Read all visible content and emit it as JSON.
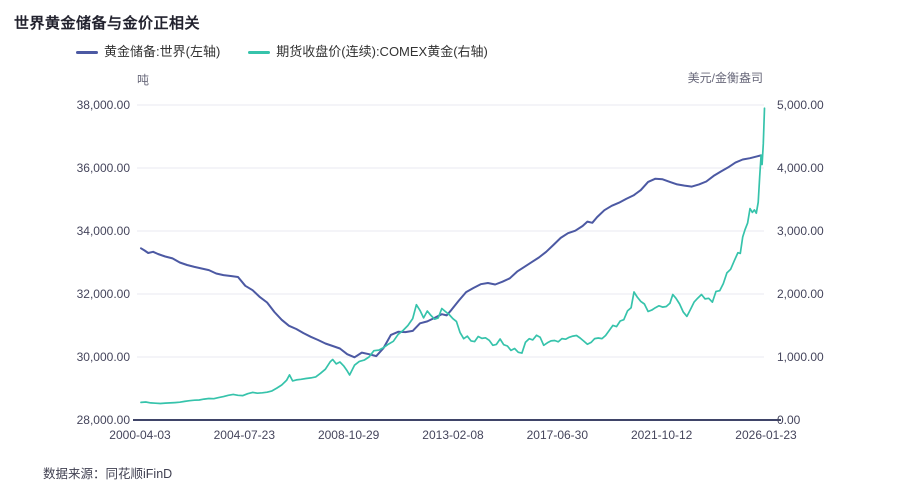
{
  "title": "世界黄金储备与金价正相关",
  "source": "数据来源：同花顺iFinD",
  "legend": [
    {
      "label": "黄金储备:世界(左轴)",
      "color": "#4c59a3"
    },
    {
      "label": "期货收盘价(连续):COMEX黄金(右轴)",
      "color": "#36c3ab"
    }
  ],
  "colors": {
    "background": "#ffffff",
    "grid": "#e9e9f1",
    "axis_line": "#3f4468",
    "title_text": "#22222e",
    "tick_text": "#45455c",
    "unit_text": "#68687a",
    "legend_text": "#333333",
    "source_text": "#3f3f50",
    "reserves_line": "#4c59a3",
    "gold_price_line": "#36c3ab"
  },
  "chart_data": {
    "type": "line",
    "title": "世界黄金储备与金价正相关",
    "grid": true,
    "legend_position": "top-left",
    "x_axis": {
      "tick_labels": [
        "2000-04-03",
        "2004-07-23",
        "2008-10-29",
        "2013-02-08",
        "2017-06-30",
        "2021-10-12",
        "2026-01-23"
      ],
      "range_years": [
        2000.26,
        2026.06
      ]
    },
    "left_axis": {
      "unit": "吨",
      "min": 28000,
      "max": 38000,
      "tick_labels": [
        "38,000.00",
        "36,000.00",
        "34,000.00",
        "32,000.00",
        "30,000.00",
        "28,000.00"
      ]
    },
    "right_axis": {
      "unit": "美元/金衡盎司",
      "min": 0,
      "max": 5000,
      "tick_labels": [
        "5,000.00",
        "4,000.00",
        "3,000.00",
        "2,000.00",
        "1,000.00",
        "0.00"
      ]
    },
    "series": [
      {
        "id": "gold-reserves-world",
        "name": "黄金储备:世界(左轴)",
        "axis": "left",
        "color": "#4c59a3",
        "width": 2,
        "points": [
          [
            2000.3,
            33450
          ],
          [
            2000.45,
            33380
          ],
          [
            2000.6,
            33300
          ],
          [
            2000.8,
            33340
          ],
          [
            2001.0,
            33270
          ],
          [
            2001.3,
            33190
          ],
          [
            2001.6,
            33130
          ],
          [
            2001.9,
            33000
          ],
          [
            2002.2,
            32920
          ],
          [
            2002.5,
            32860
          ],
          [
            2002.8,
            32810
          ],
          [
            2003.1,
            32760
          ],
          [
            2003.4,
            32650
          ],
          [
            2003.7,
            32600
          ],
          [
            2004.0,
            32570
          ],
          [
            2004.3,
            32540
          ],
          [
            2004.6,
            32260
          ],
          [
            2004.9,
            32120
          ],
          [
            2005.2,
            31900
          ],
          [
            2005.5,
            31730
          ],
          [
            2005.8,
            31430
          ],
          [
            2006.1,
            31180
          ],
          [
            2006.4,
            30990
          ],
          [
            2006.7,
            30890
          ],
          [
            2007.0,
            30760
          ],
          [
            2007.3,
            30640
          ],
          [
            2007.6,
            30540
          ],
          [
            2007.9,
            30430
          ],
          [
            2008.2,
            30350
          ],
          [
            2008.5,
            30270
          ],
          [
            2008.8,
            30090
          ],
          [
            2009.1,
            29990
          ],
          [
            2009.4,
            30140
          ],
          [
            2009.7,
            30090
          ],
          [
            2010.0,
            30030
          ],
          [
            2010.3,
            30290
          ],
          [
            2010.6,
            30700
          ],
          [
            2010.9,
            30800
          ],
          [
            2011.2,
            30790
          ],
          [
            2011.5,
            30830
          ],
          [
            2011.8,
            31070
          ],
          [
            2012.1,
            31130
          ],
          [
            2012.4,
            31240
          ],
          [
            2012.7,
            31360
          ],
          [
            2012.9,
            31320
          ],
          [
            2013.1,
            31500
          ],
          [
            2013.4,
            31790
          ],
          [
            2013.7,
            32060
          ],
          [
            2014.0,
            32190
          ],
          [
            2014.3,
            32310
          ],
          [
            2014.6,
            32350
          ],
          [
            2014.9,
            32300
          ],
          [
            2015.2,
            32390
          ],
          [
            2015.5,
            32500
          ],
          [
            2015.8,
            32710
          ],
          [
            2016.1,
            32860
          ],
          [
            2016.4,
            33010
          ],
          [
            2016.7,
            33160
          ],
          [
            2017.0,
            33340
          ],
          [
            2017.3,
            33560
          ],
          [
            2017.6,
            33780
          ],
          [
            2017.9,
            33930
          ],
          [
            2018.2,
            34010
          ],
          [
            2018.5,
            34160
          ],
          [
            2018.7,
            34300
          ],
          [
            2018.9,
            34260
          ],
          [
            2019.1,
            34440
          ],
          [
            2019.4,
            34660
          ],
          [
            2019.7,
            34800
          ],
          [
            2020.0,
            34900
          ],
          [
            2020.3,
            35020
          ],
          [
            2020.6,
            35130
          ],
          [
            2020.9,
            35300
          ],
          [
            2021.2,
            35560
          ],
          [
            2021.5,
            35660
          ],
          [
            2021.8,
            35640
          ],
          [
            2022.1,
            35560
          ],
          [
            2022.4,
            35480
          ],
          [
            2022.7,
            35440
          ],
          [
            2023.0,
            35410
          ],
          [
            2023.3,
            35480
          ],
          [
            2023.6,
            35570
          ],
          [
            2023.9,
            35750
          ],
          [
            2024.2,
            35890
          ],
          [
            2024.5,
            36020
          ],
          [
            2024.8,
            36170
          ],
          [
            2025.1,
            36270
          ],
          [
            2025.4,
            36310
          ],
          [
            2025.7,
            36370
          ],
          [
            2025.85,
            36400
          ]
        ]
      },
      {
        "id": "comex-gold-price",
        "name": "期货收盘价(连续):COMEX黄金(右轴)",
        "axis": "right",
        "color": "#36c3ab",
        "width": 1.7,
        "points": [
          [
            2000.3,
            280
          ],
          [
            2000.5,
            285
          ],
          [
            2000.7,
            272
          ],
          [
            2000.9,
            266
          ],
          [
            2001.1,
            262
          ],
          [
            2001.3,
            268
          ],
          [
            2001.5,
            272
          ],
          [
            2001.7,
            276
          ],
          [
            2001.9,
            282
          ],
          [
            2002.1,
            296
          ],
          [
            2002.3,
            306
          ],
          [
            2002.5,
            314
          ],
          [
            2002.7,
            318
          ],
          [
            2002.9,
            332
          ],
          [
            2003.1,
            342
          ],
          [
            2003.3,
            338
          ],
          [
            2003.5,
            356
          ],
          [
            2003.7,
            372
          ],
          [
            2003.9,
            392
          ],
          [
            2004.1,
            406
          ],
          [
            2004.3,
            392
          ],
          [
            2004.5,
            388
          ],
          [
            2004.7,
            418
          ],
          [
            2004.9,
            438
          ],
          [
            2005.1,
            426
          ],
          [
            2005.3,
            432
          ],
          [
            2005.5,
            442
          ],
          [
            2005.7,
            462
          ],
          [
            2005.9,
            506
          ],
          [
            2006.1,
            556
          ],
          [
            2006.3,
            630
          ],
          [
            2006.42,
            716
          ],
          [
            2006.55,
            620
          ],
          [
            2006.7,
            636
          ],
          [
            2006.9,
            646
          ],
          [
            2007.1,
            658
          ],
          [
            2007.3,
            668
          ],
          [
            2007.5,
            684
          ],
          [
            2007.7,
            742
          ],
          [
            2007.9,
            806
          ],
          [
            2008.1,
            924
          ],
          [
            2008.2,
            960
          ],
          [
            2008.35,
            890
          ],
          [
            2008.5,
            920
          ],
          [
            2008.65,
            860
          ],
          [
            2008.8,
            780
          ],
          [
            2008.9,
            714
          ],
          [
            2009.1,
            870
          ],
          [
            2009.3,
            930
          ],
          [
            2009.5,
            950
          ],
          [
            2009.7,
            1000
          ],
          [
            2009.9,
            1100
          ],
          [
            2010.1,
            1110
          ],
          [
            2010.3,
            1150
          ],
          [
            2010.5,
            1205
          ],
          [
            2010.7,
            1250
          ],
          [
            2010.9,
            1360
          ],
          [
            2011.1,
            1420
          ],
          [
            2011.3,
            1500
          ],
          [
            2011.5,
            1610
          ],
          [
            2011.65,
            1830
          ],
          [
            2011.8,
            1740
          ],
          [
            2011.95,
            1620
          ],
          [
            2012.1,
            1730
          ],
          [
            2012.25,
            1660
          ],
          [
            2012.4,
            1600
          ],
          [
            2012.55,
            1620
          ],
          [
            2012.7,
            1770
          ],
          [
            2012.85,
            1720
          ],
          [
            2013.0,
            1675
          ],
          [
            2013.15,
            1610
          ],
          [
            2013.3,
            1565
          ],
          [
            2013.45,
            1390
          ],
          [
            2013.6,
            1290
          ],
          [
            2013.75,
            1330
          ],
          [
            2013.9,
            1255
          ],
          [
            2014.05,
            1245
          ],
          [
            2014.2,
            1325
          ],
          [
            2014.35,
            1295
          ],
          [
            2014.5,
            1305
          ],
          [
            2014.65,
            1265
          ],
          [
            2014.8,
            1185
          ],
          [
            2014.95,
            1200
          ],
          [
            2015.1,
            1285
          ],
          [
            2015.25,
            1195
          ],
          [
            2015.4,
            1175
          ],
          [
            2015.55,
            1105
          ],
          [
            2015.7,
            1135
          ],
          [
            2015.85,
            1075
          ],
          [
            2016.0,
            1062
          ],
          [
            2016.15,
            1235
          ],
          [
            2016.3,
            1290
          ],
          [
            2016.45,
            1272
          ],
          [
            2016.6,
            1345
          ],
          [
            2016.75,
            1315
          ],
          [
            2016.9,
            1185
          ],
          [
            2017.05,
            1225
          ],
          [
            2017.2,
            1255
          ],
          [
            2017.35,
            1262
          ],
          [
            2017.5,
            1242
          ],
          [
            2017.65,
            1292
          ],
          [
            2017.8,
            1282
          ],
          [
            2017.95,
            1312
          ],
          [
            2018.1,
            1332
          ],
          [
            2018.25,
            1342
          ],
          [
            2018.4,
            1302
          ],
          [
            2018.55,
            1252
          ],
          [
            2018.7,
            1202
          ],
          [
            2018.85,
            1232
          ],
          [
            2019.0,
            1292
          ],
          [
            2019.15,
            1302
          ],
          [
            2019.3,
            1292
          ],
          [
            2019.45,
            1342
          ],
          [
            2019.6,
            1422
          ],
          [
            2019.75,
            1502
          ],
          [
            2019.9,
            1482
          ],
          [
            2020.05,
            1572
          ],
          [
            2020.2,
            1592
          ],
          [
            2020.35,
            1732
          ],
          [
            2020.5,
            1782
          ],
          [
            2020.62,
            2032
          ],
          [
            2020.75,
            1952
          ],
          [
            2020.9,
            1882
          ],
          [
            2021.05,
            1842
          ],
          [
            2021.2,
            1722
          ],
          [
            2021.35,
            1745
          ],
          [
            2021.5,
            1782
          ],
          [
            2021.65,
            1812
          ],
          [
            2021.8,
            1792
          ],
          [
            2021.95,
            1802
          ],
          [
            2022.1,
            1852
          ],
          [
            2022.22,
            1992
          ],
          [
            2022.35,
            1932
          ],
          [
            2022.5,
            1842
          ],
          [
            2022.65,
            1712
          ],
          [
            2022.8,
            1645
          ],
          [
            2022.95,
            1755
          ],
          [
            2023.1,
            1875
          ],
          [
            2023.25,
            1935
          ],
          [
            2023.4,
            1992
          ],
          [
            2023.55,
            1922
          ],
          [
            2023.7,
            1932
          ],
          [
            2023.85,
            1872
          ],
          [
            2024.0,
            2042
          ],
          [
            2024.15,
            2052
          ],
          [
            2024.3,
            2165
          ],
          [
            2024.45,
            2335
          ],
          [
            2024.6,
            2392
          ],
          [
            2024.75,
            2525
          ],
          [
            2024.9,
            2655
          ],
          [
            2025.0,
            2645
          ],
          [
            2025.1,
            2905
          ],
          [
            2025.2,
            3025
          ],
          [
            2025.3,
            3125
          ],
          [
            2025.4,
            3355
          ],
          [
            2025.5,
            3295
          ],
          [
            2025.58,
            3335
          ],
          [
            2025.66,
            3282
          ],
          [
            2025.74,
            3455
          ],
          [
            2025.8,
            3865
          ],
          [
            2025.86,
            4205
          ],
          [
            2025.9,
            4055
          ],
          [
            2025.95,
            4385
          ],
          [
            2026.0,
            4950
          ]
        ]
      }
    ]
  }
}
